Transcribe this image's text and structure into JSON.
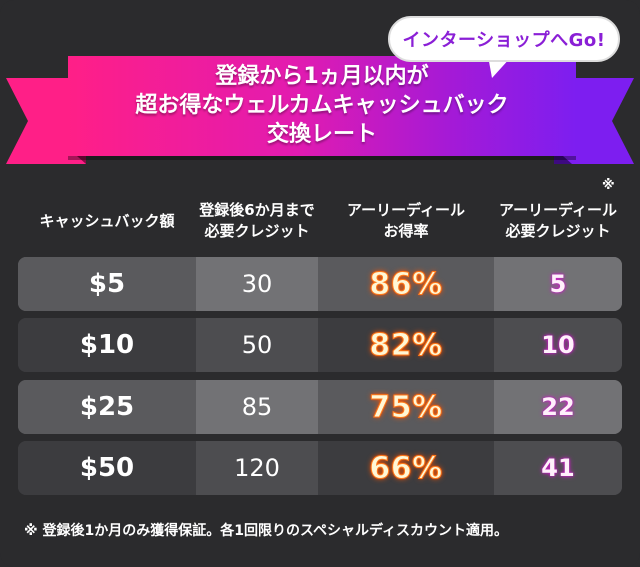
{
  "bubble": {
    "label": "インターショップへGo!"
  },
  "ribbon": {
    "line1": "登録から1ヵ月以内が",
    "line2": "超お得なウェルカムキャッシュバック",
    "line3": "交換レート"
  },
  "header": {
    "col1": "キャッシュバック額",
    "col2_line1": "登録後6か月まで",
    "col2_line2": "必要クレジット",
    "col3_line1": "アーリーディール",
    "col3_line2": "お得率",
    "col4_line1": "アーリーディール",
    "col4_line2": "必要クレジット",
    "col4_mark": "※"
  },
  "rows": [
    {
      "amount": "$5",
      "credits": "30",
      "rate": "86%",
      "early": "5"
    },
    {
      "amount": "$10",
      "credits": "50",
      "rate": "82%",
      "early": "10"
    },
    {
      "amount": "$25",
      "credits": "85",
      "rate": "75%",
      "early": "22"
    },
    {
      "amount": "$50",
      "credits": "120",
      "rate": "66%",
      "early": "41"
    }
  ],
  "footnote": "※ 登録後1か月のみ獲得保証。各1回限りのスペシャルディスカウント適用。",
  "colors": {
    "background": "#2b2b2d",
    "ribbon_start": "#ff1f87",
    "ribbon_end": "#7d1ef0",
    "rate_glow": "#ff5a00",
    "early_glow": "#d320c9"
  }
}
